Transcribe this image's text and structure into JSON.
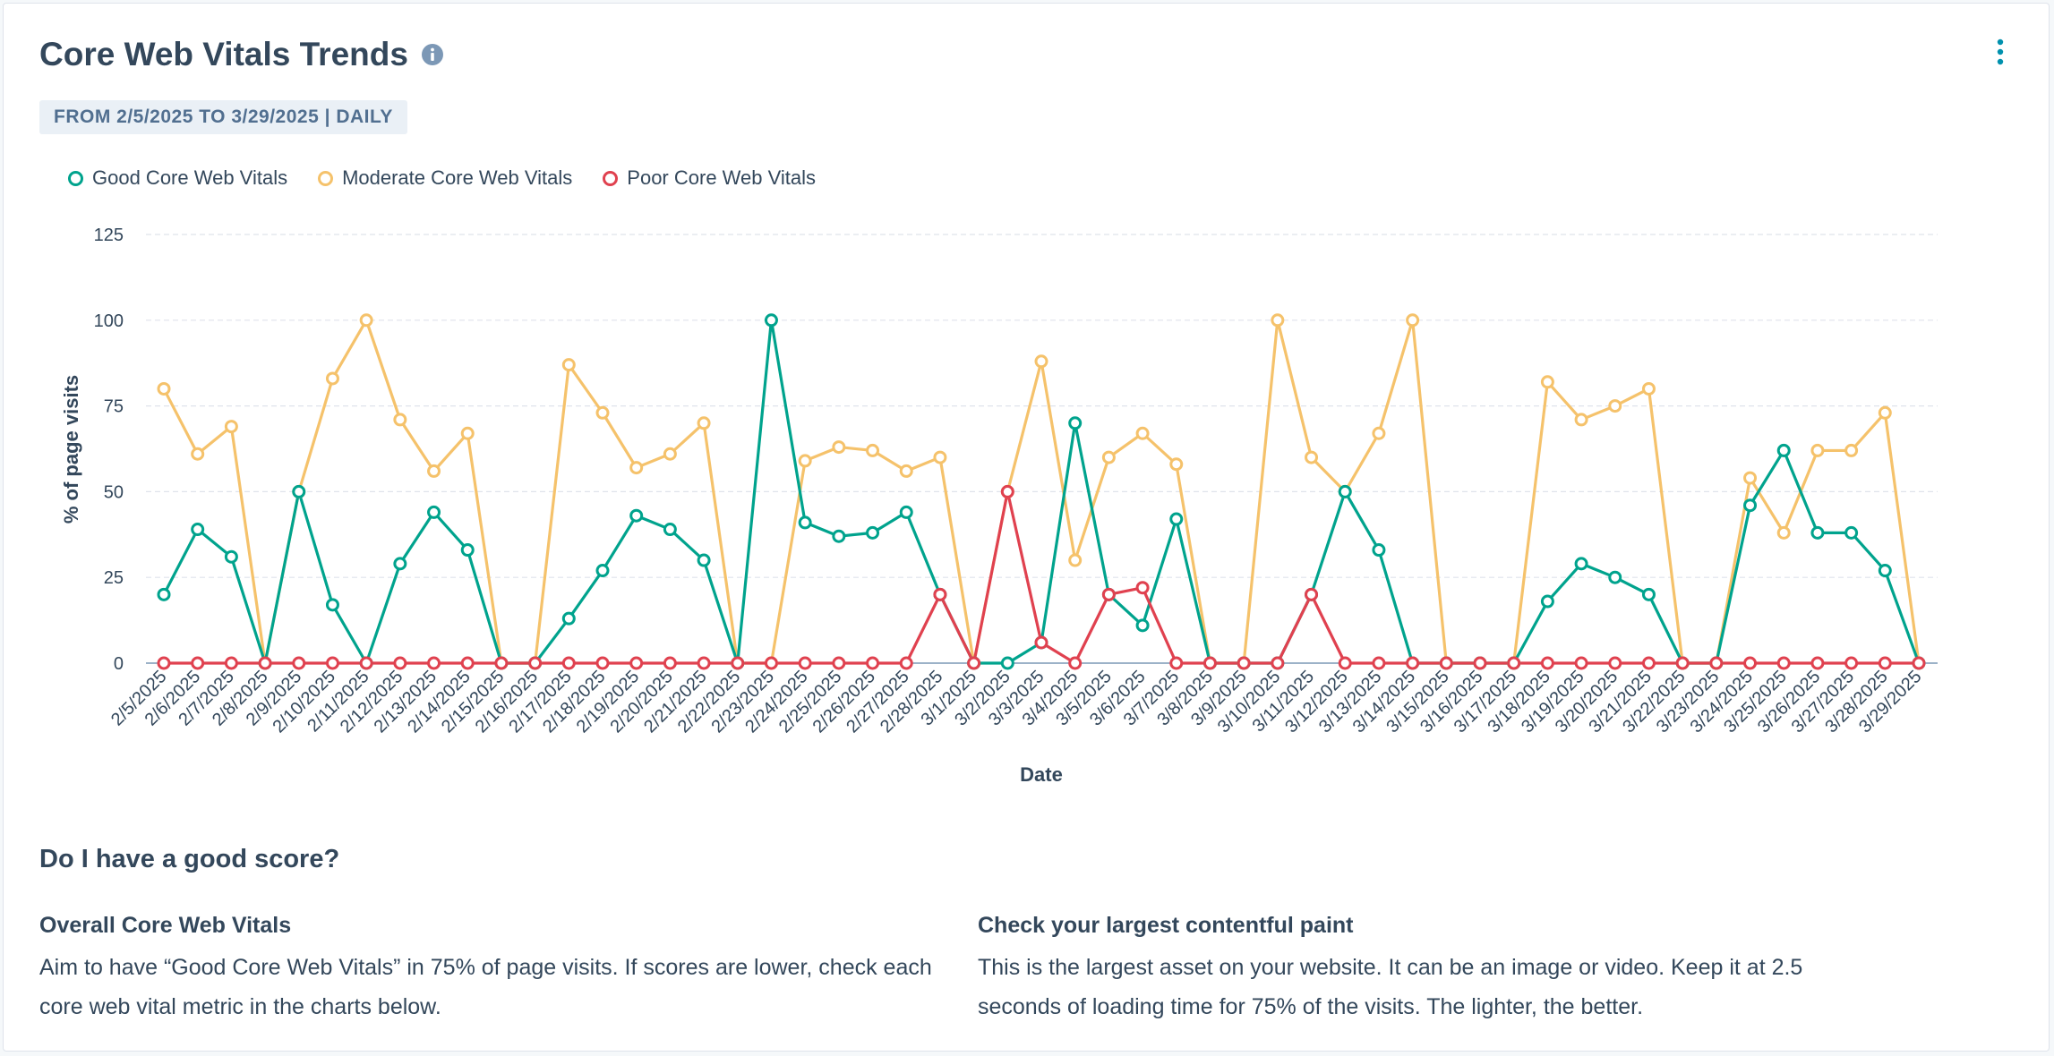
{
  "header": {
    "title": "Core Web Vitals Trends",
    "date_range": "FROM 2/5/2025 TO 3/29/2025 | DAILY"
  },
  "chart_data": {
    "type": "line",
    "xlabel": "Date",
    "ylabel": "% of page visits",
    "ylim": [
      0,
      125
    ],
    "yticks": [
      0,
      25,
      50,
      75,
      100,
      125
    ],
    "grid": true,
    "legend_position": "top-left",
    "categories": [
      "2/5/2025",
      "2/6/2025",
      "2/7/2025",
      "2/8/2025",
      "2/9/2025",
      "2/10/2025",
      "2/11/2025",
      "2/12/2025",
      "2/13/2025",
      "2/14/2025",
      "2/15/2025",
      "2/16/2025",
      "2/17/2025",
      "2/18/2025",
      "2/19/2025",
      "2/20/2025",
      "2/21/2025",
      "2/22/2025",
      "2/23/2025",
      "2/24/2025",
      "2/25/2025",
      "2/26/2025",
      "2/27/2025",
      "2/28/2025",
      "3/1/2025",
      "3/2/2025",
      "3/3/2025",
      "3/4/2025",
      "3/5/2025",
      "3/6/2025",
      "3/7/2025",
      "3/8/2025",
      "3/9/2025",
      "3/10/2025",
      "3/11/2025",
      "3/12/2025",
      "3/13/2025",
      "3/14/2025",
      "3/15/2025",
      "3/16/2025",
      "3/17/2025",
      "3/18/2025",
      "3/19/2025",
      "3/20/2025",
      "3/21/2025",
      "3/22/2025",
      "3/23/2025",
      "3/24/2025",
      "3/25/2025",
      "3/26/2025",
      "3/27/2025",
      "3/28/2025",
      "3/29/2025"
    ],
    "series": [
      {
        "name": "Good Core Web Vitals",
        "color": "#00a38d",
        "values": [
          20,
          39,
          31,
          0,
          50,
          17,
          0,
          29,
          44,
          33,
          0,
          0,
          13,
          27,
          43,
          39,
          30,
          0,
          100,
          41,
          37,
          38,
          44,
          20,
          0,
          0,
          6,
          70,
          20,
          11,
          42,
          0,
          0,
          0,
          20,
          50,
          33,
          0,
          0,
          0,
          0,
          18,
          29,
          25,
          20,
          0,
          0,
          46,
          62,
          38,
          38,
          27,
          0
        ]
      },
      {
        "name": "Moderate Core Web Vitals",
        "color": "#f5c26b",
        "values": [
          80,
          61,
          69,
          0,
          50,
          83,
          100,
          71,
          56,
          67,
          0,
          0,
          87,
          73,
          57,
          61,
          70,
          0,
          0,
          59,
          63,
          62,
          56,
          60,
          0,
          50,
          88,
          30,
          60,
          67,
          58,
          0,
          0,
          100,
          60,
          50,
          67,
          100,
          0,
          0,
          0,
          82,
          71,
          75,
          80,
          0,
          0,
          54,
          38,
          62,
          62,
          73,
          0
        ]
      },
      {
        "name": "Poor Core Web Vitals",
        "color": "#e0414f",
        "values": [
          0,
          0,
          0,
          0,
          0,
          0,
          0,
          0,
          0,
          0,
          0,
          0,
          0,
          0,
          0,
          0,
          0,
          0,
          0,
          0,
          0,
          0,
          0,
          20,
          0,
          50,
          6,
          0,
          20,
          22,
          0,
          0,
          0,
          0,
          20,
          0,
          0,
          0,
          0,
          0,
          0,
          0,
          0,
          0,
          0,
          0,
          0,
          0,
          0,
          0,
          0,
          0,
          0
        ]
      }
    ]
  },
  "help": {
    "heading": "Do I have a good score?",
    "left": {
      "title": "Overall Core Web Vitals",
      "body": "Aim to have “Good Core Web Vitals” in 75% of page visits. If scores are lower, check each core web vital metric in the charts below."
    },
    "right": {
      "title": "Check your largest contentful paint",
      "body": "This is the largest asset on your website. It can be an image or video. Keep it at 2.5 seconds of loading time for 75% of the visits. The lighter, the better."
    }
  },
  "colors": {
    "accent": "#0091ae",
    "text": "#33475b",
    "badge_bg": "#eaf0f6",
    "info_icon": "#7c98b6"
  },
  "icons": {
    "info": "info-icon",
    "menu": "vertical-ellipsis-icon"
  }
}
